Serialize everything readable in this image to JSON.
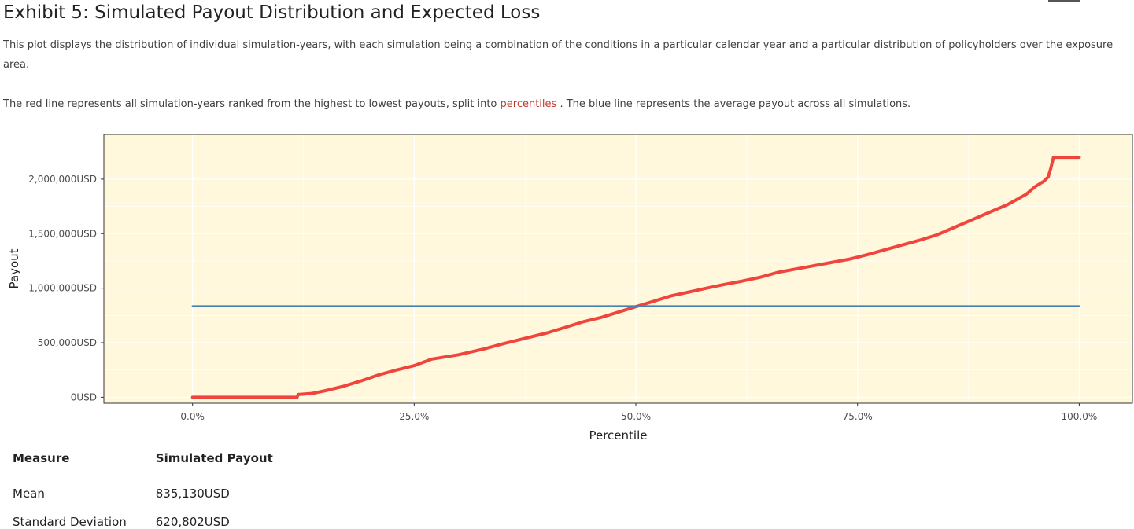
{
  "header": {
    "title": "Exhibit 5: Simulated Payout Distribution and Expected Loss"
  },
  "description": {
    "paragraph1": "This plot displays the distribution of individual simulation-years, with each simulation being a combination of the conditions in a particular calendar year and a particular distribution of policyholders over the exposure area.",
    "paragraph2_before": "The red line represents all simulation-years ranked from the highest to lowest payouts, split into ",
    "paragraph2_link": "percentiles",
    "paragraph2_after": " . The blue line represents the average payout across all simulations."
  },
  "chart_data": {
    "type": "line",
    "xlabel": "Percentile",
    "ylabel": "Payout",
    "xlim": [
      -10,
      106
    ],
    "ylim": [
      -55000,
      2410000
    ],
    "x_ticks": [
      0,
      25,
      50,
      75,
      100
    ],
    "x_tick_labels": [
      "0.0%",
      "25.0%",
      "50.0%",
      "75.0%",
      "100.0%"
    ],
    "y_ticks": [
      0,
      500000,
      1000000,
      1500000,
      2000000
    ],
    "y_tick_labels": [
      "0USD",
      "500,000USD",
      "1,000,000USD",
      "1,500,000USD",
      "2,000,000USD"
    ],
    "grid": true,
    "background": "#fff8dc",
    "series": [
      {
        "color": "#f0453c",
        "x": [
          0,
          5,
          10,
          11.8,
          11.9,
          13.5,
          15,
          17,
          19,
          21,
          23,
          25,
          27,
          30,
          33,
          35,
          37,
          40,
          42,
          44,
          46,
          48,
          50,
          52,
          54,
          56,
          58,
          60,
          62,
          64,
          66,
          68,
          70,
          72,
          74,
          76,
          78,
          80,
          82,
          84,
          86,
          88,
          90,
          92,
          94,
          95,
          96,
          96.5,
          96.8,
          97.1,
          98,
          100
        ],
        "y": [
          0,
          0,
          0,
          0,
          25000,
          35000,
          60000,
          100000,
          150000,
          205000,
          250000,
          290000,
          350000,
          390000,
          445000,
          490000,
          530000,
          590000,
          640000,
          690000,
          730000,
          780000,
          830000,
          880000,
          930000,
          965000,
          1000000,
          1035000,
          1065000,
          1100000,
          1145000,
          1175000,
          1205000,
          1235000,
          1265000,
          1305000,
          1350000,
          1395000,
          1440000,
          1490000,
          1560000,
          1630000,
          1700000,
          1770000,
          1860000,
          1930000,
          1980000,
          2020000,
          2100000,
          2200000,
          2200000,
          2200000
        ]
      },
      {
        "color": "#4682b4",
        "x": [
          0,
          100
        ],
        "y": [
          835130,
          835130
        ]
      }
    ]
  },
  "table": {
    "headers": [
      "Measure",
      "Simulated Payout"
    ],
    "rows": [
      [
        "Mean",
        "835,130USD"
      ],
      [
        "Standard Deviation",
        "620,802USD"
      ]
    ]
  }
}
